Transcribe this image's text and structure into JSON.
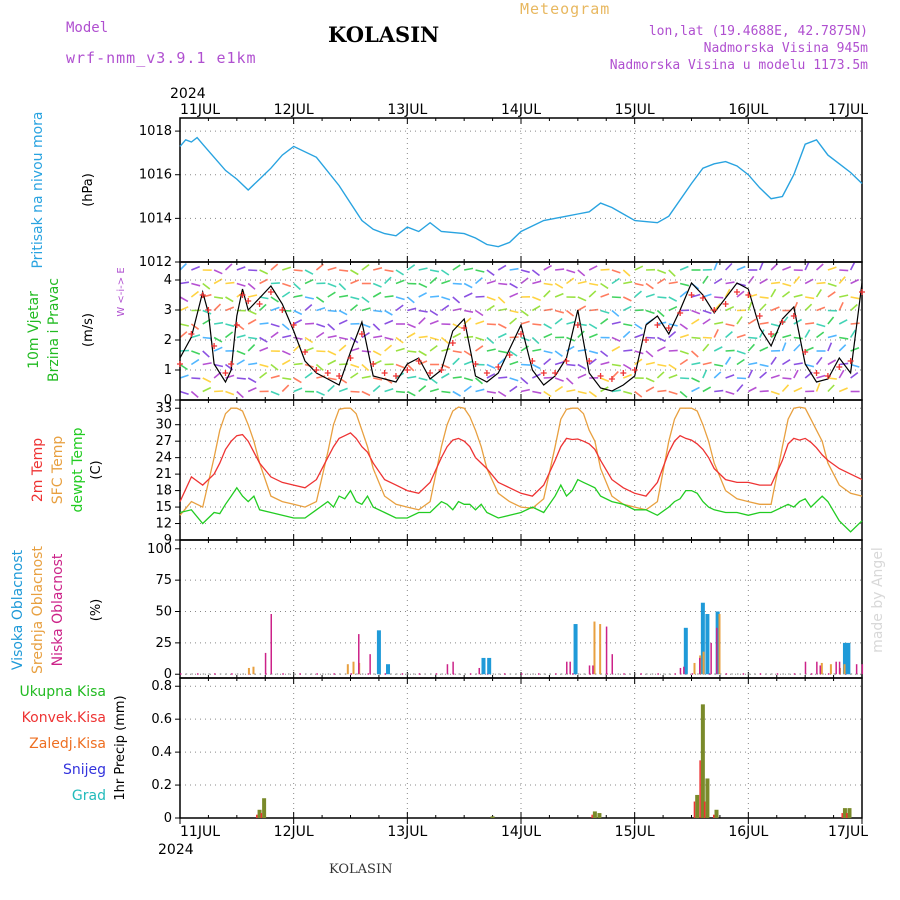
{
  "header": {
    "model_label": "Model",
    "model_name": "wrf-nmm_v3.9.1 e1km",
    "station": "KOLASIN",
    "product": "Meteogram",
    "coords": "lon,lat (19.4688E, 42.7875N)",
    "altitude": "Nadmorska Visina 945m",
    "model_altitude": "Nadmorska Visina u modelu 1173.5m",
    "footer": "KOLASIN",
    "watermark": "made by Angel"
  },
  "colors": {
    "pressure": "#29a3e0",
    "wind_label": "#22bb22",
    "speed_black": "#000000",
    "temp2m": "#ee3333",
    "sfc": "#e8a040",
    "dewpt": "#22cc22",
    "cloud_high": "#1f9ad8",
    "cloud_mid": "#e8a040",
    "cloud_low": "#cc2288",
    "precip_total": "#22bb22",
    "precip_conv": "#ee3333",
    "precip_frz": "#ee6f22",
    "snow": "#3333dd",
    "hail": "#22bbbb",
    "bar_total": "#7a8a2a",
    "grid": "#888888"
  },
  "time_axis": {
    "year": "2024",
    "days": [
      "11JUL",
      "12JUL",
      "13JUL",
      "14JUL",
      "15JUL",
      "16JUL",
      "17JUL"
    ]
  },
  "chart_data": [
    {
      "type": "line",
      "panel": "pressure",
      "ylabel": [
        "Pritisak na nivou mora",
        "(hPa)"
      ],
      "ylim": [
        1012,
        1018.6
      ],
      "yticks": [
        "1018",
        "1016",
        "1014",
        "1012"
      ],
      "x_days": [
        0,
        0.05,
        0.1,
        0.15,
        0.2,
        0.3,
        0.4,
        0.5,
        0.6,
        0.7,
        0.8,
        0.9,
        1.0,
        1.2,
        1.4,
        1.5,
        1.6,
        1.7,
        1.8,
        1.9,
        2.0,
        2.1,
        2.2,
        2.3,
        2.5,
        2.6,
        2.7,
        2.8,
        2.9,
        3.0,
        3.2,
        3.4,
        3.5,
        3.6,
        3.7,
        3.8,
        3.9,
        4.0,
        4.2,
        4.3,
        4.5,
        4.6,
        4.7,
        4.8,
        4.9,
        5.0,
        5.1,
        5.2,
        5.3,
        5.4,
        5.5,
        5.6,
        5.7,
        5.8,
        5.9,
        6.0
      ],
      "values": [
        1017.3,
        1017.6,
        1017.5,
        1017.7,
        1017.4,
        1016.8,
        1016.2,
        1015.8,
        1015.3,
        1015.8,
        1016.3,
        1016.9,
        1017.3,
        1016.8,
        1015.5,
        1014.7,
        1013.9,
        1013.5,
        1013.3,
        1013.2,
        1013.6,
        1013.4,
        1013.8,
        1013.4,
        1013.3,
        1013.1,
        1012.8,
        1012.7,
        1012.9,
        1013.4,
        1013.9,
        1014.1,
        1014.2,
        1014.3,
        1014.7,
        1014.5,
        1014.2,
        1013.9,
        1013.8,
        1014.1,
        1015.6,
        1016.3,
        1016.5,
        1016.6,
        1016.4,
        1016.0,
        1015.4,
        1014.9,
        1015.0,
        1016.0,
        1017.4,
        1017.6,
        1016.9,
        1016.5,
        1016.1,
        1015.6
      ]
    },
    {
      "type": "line",
      "panel": "wind",
      "ylabel": [
        "10m Vjetar",
        "Brzina i Pravac",
        "(m/s)"
      ],
      "ylim": [
        0,
        4.6
      ],
      "yticks": [
        "4",
        "3",
        "2",
        "1",
        "0"
      ],
      "direction_key": "W <-i-> E",
      "x_days": [
        0,
        0.1,
        0.2,
        0.25,
        0.3,
        0.4,
        0.45,
        0.5,
        0.55,
        0.6,
        0.7,
        0.8,
        0.9,
        1.0,
        1.1,
        1.2,
        1.3,
        1.4,
        1.5,
        1.6,
        1.7,
        1.8,
        1.9,
        2.0,
        2.1,
        2.2,
        2.3,
        2.4,
        2.5,
        2.6,
        2.7,
        2.8,
        2.9,
        3.0,
        3.1,
        3.2,
        3.3,
        3.4,
        3.5,
        3.6,
        3.7,
        3.8,
        3.9,
        4.0,
        4.1,
        4.2,
        4.3,
        4.4,
        4.5,
        4.6,
        4.7,
        4.8,
        4.9,
        5.0,
        5.1,
        5.2,
        5.3,
        5.4,
        5.5,
        5.6,
        5.7,
        5.8,
        5.9,
        6.0
      ],
      "speed": [
        1.4,
        2.1,
        3.6,
        2.9,
        1.2,
        0.6,
        1.0,
        2.8,
        3.7,
        3.0,
        3.4,
        3.8,
        3.2,
        2.3,
        1.3,
        0.9,
        0.7,
        0.5,
        1.6,
        2.6,
        0.8,
        0.7,
        0.6,
        1.2,
        1.4,
        0.7,
        1.0,
        2.3,
        2.7,
        0.8,
        0.6,
        0.9,
        1.7,
        2.5,
        1.0,
        0.5,
        0.8,
        1.4,
        3.0,
        0.9,
        0.4,
        0.3,
        0.5,
        0.8,
        2.5,
        2.8,
        2.2,
        3.0,
        3.9,
        3.5,
        2.9,
        3.4,
        3.9,
        3.7,
        2.4,
        1.8,
        2.7,
        3.1,
        1.2,
        0.6,
        0.7,
        1.4,
        0.9,
        3.9
      ],
      "speed_alt": [
        1.2,
        2.2,
        3.5,
        3.0,
        1.8,
        0.9,
        1.2,
        2.5,
        3.5,
        3.3,
        3.2,
        3.6,
        3.0,
        2.5,
        1.6,
        1.0,
        0.9,
        0.8,
        1.4,
        2.2,
        1.2,
        0.9,
        0.8,
        1.0,
        1.3,
        0.9,
        1.0,
        1.9,
        2.4,
        1.2,
        0.9,
        1.1,
        1.5,
        2.2,
        1.3,
        0.9,
        0.9,
        1.3,
        2.5,
        1.3,
        0.8,
        0.7,
        0.9,
        1.0,
        2.0,
        2.5,
        2.4,
        2.9,
        3.5,
        3.4,
        3.0,
        3.2,
        3.6,
        3.5,
        2.8,
        2.2,
        2.6,
        2.8,
        1.6,
        0.9,
        0.8,
        1.1,
        1.3,
        3.6
      ]
    },
    {
      "type": "line",
      "panel": "temperature",
      "ylabel": [
        "2m Temp",
        "SFC Temp",
        "dewpt Temp",
        "(C)"
      ],
      "ylim": [
        9,
        34.5
      ],
      "yticks": [
        "33",
        "30",
        "27",
        "24",
        "21",
        "18",
        "15",
        "12",
        "9"
      ],
      "x_days": [
        0,
        0.1,
        0.2,
        0.3,
        0.35,
        0.4,
        0.45,
        0.5,
        0.55,
        0.6,
        0.65,
        0.7,
        0.8,
        0.9,
        1.0,
        1.1,
        1.2,
        1.3,
        1.35,
        1.4,
        1.45,
        1.5,
        1.55,
        1.6,
        1.65,
        1.7,
        1.8,
        1.9,
        2.0,
        2.1,
        2.2,
        2.3,
        2.35,
        2.4,
        2.45,
        2.5,
        2.55,
        2.6,
        2.65,
        2.7,
        2.8,
        2.9,
        3.0,
        3.1,
        3.2,
        3.3,
        3.35,
        3.4,
        3.45,
        3.5,
        3.55,
        3.6,
        3.65,
        3.7,
        3.8,
        3.9,
        4.0,
        4.1,
        4.2,
        4.3,
        4.35,
        4.4,
        4.45,
        4.5,
        4.55,
        4.6,
        4.65,
        4.7,
        4.8,
        4.9,
        5.0,
        5.1,
        5.2,
        5.3,
        5.35,
        5.4,
        5.45,
        5.5,
        5.55,
        5.6,
        5.65,
        5.7,
        5.8,
        5.9,
        6.0
      ],
      "t2m": [
        16,
        20.5,
        19,
        21,
        23,
        25.5,
        27,
        28,
        28.2,
        27,
        25,
        23,
        20.5,
        19.5,
        19,
        18.5,
        20,
        24,
        26,
        27.5,
        28,
        28.5,
        27.5,
        26,
        25,
        23,
        20,
        19,
        18,
        17.5,
        19.5,
        24,
        26,
        27.2,
        27.5,
        27,
        26,
        24,
        23,
        22,
        19.5,
        18.5,
        17.5,
        17,
        19,
        23.5,
        26,
        27.5,
        27.3,
        27.4,
        27,
        26.5,
        25.5,
        23.5,
        20,
        18.5,
        17.5,
        17,
        19.5,
        25,
        27,
        28,
        27.5,
        27.2,
        26.5,
        25.5,
        24,
        22,
        20,
        19.5,
        19.5,
        19,
        19,
        23.5,
        26.5,
        27.5,
        27.2,
        27.5,
        26.8,
        25.8,
        24.5,
        23.5,
        22,
        21,
        20
      ],
      "sfc": [
        13.5,
        16,
        15,
        24,
        29,
        32,
        33,
        33,
        32.5,
        30,
        27,
        23,
        17,
        16,
        15.5,
        15,
        16,
        25,
        30,
        32.8,
        33,
        33,
        32,
        29,
        26,
        22,
        17,
        15.5,
        15,
        14.5,
        16,
        26,
        30,
        32.5,
        33.2,
        33,
        31.5,
        29,
        26,
        22,
        17.5,
        16,
        15,
        14.8,
        16.5,
        26,
        31,
        32.8,
        33,
        33,
        32,
        29,
        27,
        22,
        17,
        15.5,
        15,
        14.5,
        16,
        27,
        31,
        33,
        33,
        33,
        32.5,
        30,
        27,
        23,
        18,
        16.5,
        16,
        15.5,
        15.5,
        26,
        31,
        33,
        33.2,
        33,
        31,
        29,
        27,
        23,
        19,
        17.5,
        17
      ],
      "dewpt": [
        14,
        14.5,
        12,
        14,
        13.8,
        15.5,
        17,
        18.5,
        17,
        16,
        17,
        14.5,
        14,
        13.5,
        13,
        13,
        14.5,
        16,
        15,
        17,
        16.5,
        18,
        16,
        15.5,
        17,
        15,
        14,
        13,
        13,
        14,
        14,
        16,
        15.5,
        14.5,
        16,
        15.5,
        15.5,
        14.5,
        15.5,
        14,
        13,
        13.5,
        14,
        15,
        14,
        17,
        19,
        17,
        18,
        20,
        19.5,
        19,
        18.5,
        17,
        16,
        15.5,
        14.5,
        14.5,
        13.5,
        15,
        16,
        16.5,
        18,
        18,
        17.5,
        16,
        15,
        14.5,
        14,
        14,
        13.5,
        14,
        14,
        15,
        15.5,
        15,
        16,
        16.5,
        15,
        16,
        17,
        16,
        12.5,
        10.5,
        12.5
      ]
    },
    {
      "type": "bar",
      "panel": "clouds",
      "ylabel": [
        "Visoka Oblacnost",
        "Srednja Oblacnost",
        "Niska Oblacnost",
        "(%)"
      ],
      "ylim": [
        -3,
        107
      ],
      "yticks": [
        "100",
        "75",
        "50",
        "25",
        "0"
      ],
      "series": [
        {
          "name": "Visoka Oblacnost",
          "x_days": [
            1.75,
            1.83,
            2.67,
            2.72,
            3.48,
            4.45,
            4.6,
            4.64,
            4.73,
            5.85,
            5.88
          ],
          "values": [
            35,
            8,
            13,
            13,
            40,
            37,
            57,
            48,
            50,
            25,
            25
          ]
        },
        {
          "name": "Srednja Oblacnost",
          "x_days": [
            0.58,
            0.62,
            1.45,
            1.5,
            1.55,
            3.62,
            3.67,
            4.5,
            4.55,
            4.58,
            4.72,
            5.62,
            5.7,
            5.78,
            5.82
          ],
          "values": [
            5,
            6,
            8,
            10,
            9,
            42,
            40,
            9,
            15,
            18,
            48,
            9,
            8,
            5,
            8
          ]
        },
        {
          "name": "Niska Oblacnost",
          "x_days": [
            0.7,
            0.75,
            1.52,
            1.62,
            2.3,
            2.35,
            2.58,
            3.35,
            3.38,
            3.55,
            3.58,
            3.7,
            3.75,
            4.35,
            4.38,
            4.52,
            4.62,
            4.67,
            5.45,
            5.55,
            5.58,
            5.72,
            5.75,
            5.9,
            5.95
          ],
          "values": [
            17,
            48,
            32,
            16,
            8,
            10,
            5,
            10,
            10,
            7,
            7,
            38,
            16,
            5,
            6,
            13,
            25,
            37,
            10,
            10,
            7,
            10,
            10,
            8,
            8
          ]
        }
      ]
    },
    {
      "type": "bar",
      "panel": "precipitation",
      "ylabel": [
        "Ukupna Kisa",
        "Konvek.Kisa",
        "Zaledj.Kisa",
        "Snijeg",
        "Grad",
        "1hr Precip (mm)"
      ],
      "ylim": [
        0,
        0.85
      ],
      "yticks": [
        "0.8",
        "0.6",
        "0.4",
        "0.2",
        "0"
      ],
      "x_days": [
        0.7,
        0.74,
        2.75,
        3.65,
        3.69,
        4.55,
        4.6,
        4.64,
        4.72,
        5.85,
        5.89
      ],
      "total": [
        0.05,
        0.12,
        0.01,
        0.04,
        0.03,
        0.14,
        0.69,
        0.24,
        0.05,
        0.06,
        0.06
      ],
      "convective": [
        0.02,
        0.03,
        0,
        0.02,
        0,
        0.1,
        0.35,
        0.1,
        0.02,
        0.03,
        0.03
      ]
    }
  ]
}
